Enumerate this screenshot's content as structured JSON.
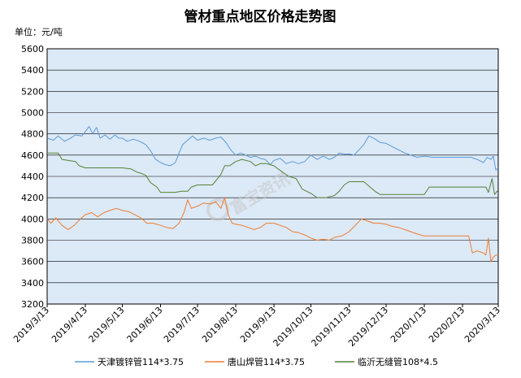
{
  "chart_data": {
    "type": "line",
    "title": "管材重点地区价格走势图",
    "unit_label": "单位：元/吨",
    "xlabel": "",
    "ylabel": "",
    "ylim": [
      3200,
      5600
    ],
    "ytick_step": 200,
    "grid": true,
    "legend_position": "bottom",
    "plot_background": "#dce9f7",
    "x_tick_labels": [
      "2019/3/13",
      "2019/4/13",
      "2019/5/13",
      "2019/6/13",
      "2019/7/13",
      "2019/8/13",
      "2019/9/13",
      "2019/10/13",
      "2019/11/13",
      "2019/12/13",
      "2020/1/13",
      "2020/2/13",
      "2020/3/13"
    ],
    "series": [
      {
        "name": "天津镀锌管114*3.75",
        "color": "#5b9bd5",
        "points": [
          [
            "2019/3/13",
            4760
          ],
          [
            "2019/3/18",
            4740
          ],
          [
            "2019/3/22",
            4780
          ],
          [
            "2019/3/27",
            4730
          ],
          [
            "2019/4/1",
            4760
          ],
          [
            "2019/4/5",
            4790
          ],
          [
            "2019/4/10",
            4780
          ],
          [
            "2019/4/13",
            4820
          ],
          [
            "2019/4/16",
            4870
          ],
          [
            "2019/4/19",
            4800
          ],
          [
            "2019/4/22",
            4860
          ],
          [
            "2019/4/25",
            4760
          ],
          [
            "2019/4/29",
            4790
          ],
          [
            "2019/5/3",
            4750
          ],
          [
            "2019/5/7",
            4790
          ],
          [
            "2019/5/10",
            4760
          ],
          [
            "2019/5/13",
            4760
          ],
          [
            "2019/5/17",
            4730
          ],
          [
            "2019/5/22",
            4750
          ],
          [
            "2019/5/27",
            4730
          ],
          [
            "2019/6/1",
            4700
          ],
          [
            "2019/6/5",
            4640
          ],
          [
            "2019/6/9",
            4560
          ],
          [
            "2019/6/13",
            4530
          ],
          [
            "2019/6/17",
            4510
          ],
          [
            "2019/6/21",
            4500
          ],
          [
            "2019/6/25",
            4530
          ],
          [
            "2019/6/28",
            4620
          ],
          [
            "2019/7/1",
            4700
          ],
          [
            "2019/7/5",
            4740
          ],
          [
            "2019/7/9",
            4780
          ],
          [
            "2019/7/13",
            4740
          ],
          [
            "2019/7/18",
            4760
          ],
          [
            "2019/7/23",
            4740
          ],
          [
            "2019/7/28",
            4760
          ],
          [
            "2019/8/1",
            4770
          ],
          [
            "2019/8/5",
            4720
          ],
          [
            "2019/8/9",
            4650
          ],
          [
            "2019/8/13",
            4600
          ],
          [
            "2019/8/17",
            4620
          ],
          [
            "2019/8/21",
            4600
          ],
          [
            "2019/8/25",
            4580
          ],
          [
            "2019/8/29",
            4590
          ],
          [
            "2019/9/2",
            4570
          ],
          [
            "2019/9/6",
            4560
          ],
          [
            "2019/9/10",
            4510
          ],
          [
            "2019/9/13",
            4550
          ],
          [
            "2019/9/18",
            4570
          ],
          [
            "2019/9/23",
            4520
          ],
          [
            "2019/9/28",
            4540
          ],
          [
            "2019/10/3",
            4520
          ],
          [
            "2019/10/8",
            4540
          ],
          [
            "2019/10/13",
            4600
          ],
          [
            "2019/10/18",
            4560
          ],
          [
            "2019/10/23",
            4590
          ],
          [
            "2019/10/28",
            4560
          ],
          [
            "2019/11/1",
            4580
          ],
          [
            "2019/11/5",
            4620
          ],
          [
            "2019/11/9",
            4610
          ],
          [
            "2019/11/13",
            4610
          ],
          [
            "2019/11/17",
            4600
          ],
          [
            "2019/11/21",
            4650
          ],
          [
            "2019/11/25",
            4700
          ],
          [
            "2019/11/29",
            4780
          ],
          [
            "2019/12/3",
            4760
          ],
          [
            "2019/12/8",
            4720
          ],
          [
            "2019/12/13",
            4710
          ],
          [
            "2019/12/18",
            4680
          ],
          [
            "2019/12/23",
            4650
          ],
          [
            "2019/12/28",
            4620
          ],
          [
            "2020/1/2",
            4600
          ],
          [
            "2020/1/7",
            4580
          ],
          [
            "2020/1/13",
            4590
          ],
          [
            "2020/1/20",
            4580
          ],
          [
            "2020/1/27",
            4580
          ],
          [
            "2020/2/3",
            4580
          ],
          [
            "2020/2/10",
            4580
          ],
          [
            "2020/2/13",
            4580
          ],
          [
            "2020/2/20",
            4580
          ],
          [
            "2020/2/25",
            4560
          ],
          [
            "2020/3/1",
            4530
          ],
          [
            "2020/3/4",
            4580
          ],
          [
            "2020/3/7",
            4560
          ],
          [
            "2020/3/9",
            4590
          ],
          [
            "2020/3/11",
            4460
          ],
          [
            "2020/3/13",
            4480
          ]
        ]
      },
      {
        "name": "唐山焊管114*3.75",
        "color": "#ed7d31",
        "points": [
          [
            "2019/3/13",
            4000
          ],
          [
            "2019/3/16",
            3960
          ],
          [
            "2019/3/20",
            4010
          ],
          [
            "2019/3/25",
            3940
          ],
          [
            "2019/3/30",
            3900
          ],
          [
            "2019/4/4",
            3940
          ],
          [
            "2019/4/9",
            4000
          ],
          [
            "2019/4/13",
            4040
          ],
          [
            "2019/4/18",
            4060
          ],
          [
            "2019/4/23",
            4020
          ],
          [
            "2019/4/28",
            4060
          ],
          [
            "2019/5/3",
            4080
          ],
          [
            "2019/5/8",
            4100
          ],
          [
            "2019/5/13",
            4080
          ],
          [
            "2019/5/18",
            4070
          ],
          [
            "2019/5/23",
            4040
          ],
          [
            "2019/5/28",
            4010
          ],
          [
            "2019/6/2",
            3960
          ],
          [
            "2019/6/7",
            3960
          ],
          [
            "2019/6/13",
            3940
          ],
          [
            "2019/6/18",
            3920
          ],
          [
            "2019/6/23",
            3910
          ],
          [
            "2019/6/28",
            3960
          ],
          [
            "2019/7/2",
            4060
          ],
          [
            "2019/7/5",
            4180
          ],
          [
            "2019/7/8",
            4100
          ],
          [
            "2019/7/13",
            4120
          ],
          [
            "2019/7/18",
            4150
          ],
          [
            "2019/7/23",
            4140
          ],
          [
            "2019/7/28",
            4160
          ],
          [
            "2019/8/1",
            4100
          ],
          [
            "2019/8/4",
            4200
          ],
          [
            "2019/8/7",
            4040
          ],
          [
            "2019/8/10",
            3960
          ],
          [
            "2019/8/13",
            3950
          ],
          [
            "2019/8/18",
            3940
          ],
          [
            "2019/8/23",
            3920
          ],
          [
            "2019/8/28",
            3900
          ],
          [
            "2019/9/2",
            3920
          ],
          [
            "2019/9/7",
            3960
          ],
          [
            "2019/9/13",
            3960
          ],
          [
            "2019/9/18",
            3940
          ],
          [
            "2019/9/23",
            3920
          ],
          [
            "2019/9/28",
            3880
          ],
          [
            "2019/10/3",
            3870
          ],
          [
            "2019/10/8",
            3850
          ],
          [
            "2019/10/13",
            3820
          ],
          [
            "2019/10/18",
            3800
          ],
          [
            "2019/10/23",
            3810
          ],
          [
            "2019/10/28",
            3800
          ],
          [
            "2019/11/2",
            3830
          ],
          [
            "2019/11/7",
            3840
          ],
          [
            "2019/11/13",
            3880
          ],
          [
            "2019/11/18",
            3940
          ],
          [
            "2019/11/23",
            4000
          ],
          [
            "2019/11/28",
            3980
          ],
          [
            "2019/12/3",
            3960
          ],
          [
            "2019/12/8",
            3960
          ],
          [
            "2019/12/13",
            3950
          ],
          [
            "2019/12/18",
            3930
          ],
          [
            "2019/12/23",
            3920
          ],
          [
            "2019/12/28",
            3900
          ],
          [
            "2020/1/2",
            3880
          ],
          [
            "2020/1/7",
            3860
          ],
          [
            "2020/1/13",
            3840
          ],
          [
            "2020/1/20",
            3840
          ],
          [
            "2020/1/27",
            3840
          ],
          [
            "2020/2/3",
            3840
          ],
          [
            "2020/2/10",
            3840
          ],
          [
            "2020/2/13",
            3840
          ],
          [
            "2020/2/18",
            3840
          ],
          [
            "2020/2/21",
            3680
          ],
          [
            "2020/2/25",
            3700
          ],
          [
            "2020/3/1",
            3680
          ],
          [
            "2020/3/3",
            3660
          ],
          [
            "2020/3/5",
            3820
          ],
          [
            "2020/3/7",
            3600
          ],
          [
            "2020/3/9",
            3640
          ],
          [
            "2020/3/11",
            3660
          ],
          [
            "2020/3/13",
            3660
          ]
        ]
      },
      {
        "name": "临沂无缝管108*4.5",
        "color": "#548235",
        "points": [
          [
            "2019/3/13",
            4620
          ],
          [
            "2019/3/22",
            4620
          ],
          [
            "2019/3/25",
            4560
          ],
          [
            "2019/4/5",
            4540
          ],
          [
            "2019/4/8",
            4500
          ],
          [
            "2019/4/13",
            4480
          ],
          [
            "2019/5/1",
            4480
          ],
          [
            "2019/5/13",
            4480
          ],
          [
            "2019/5/20",
            4470
          ],
          [
            "2019/5/25",
            4440
          ],
          [
            "2019/5/28",
            4430
          ],
          [
            "2019/6/1",
            4410
          ],
          [
            "2019/6/5",
            4340
          ],
          [
            "2019/6/10",
            4300
          ],
          [
            "2019/6/13",
            4250
          ],
          [
            "2019/6/25",
            4250
          ],
          [
            "2019/6/30",
            4260
          ],
          [
            "2019/7/5",
            4260
          ],
          [
            "2019/7/8",
            4300
          ],
          [
            "2019/7/13",
            4320
          ],
          [
            "2019/7/25",
            4320
          ],
          [
            "2019/7/28",
            4360
          ],
          [
            "2019/8/1",
            4420
          ],
          [
            "2019/8/4",
            4500
          ],
          [
            "2019/8/8",
            4500
          ],
          [
            "2019/8/13",
            4540
          ],
          [
            "2019/8/18",
            4560
          ],
          [
            "2019/8/25",
            4540
          ],
          [
            "2019/8/29",
            4500
          ],
          [
            "2019/9/2",
            4520
          ],
          [
            "2019/9/7",
            4520
          ],
          [
            "2019/9/13",
            4500
          ],
          [
            "2019/9/20",
            4440
          ],
          [
            "2019/9/25",
            4400
          ],
          [
            "2019/10/1",
            4380
          ],
          [
            "2019/10/6",
            4280
          ],
          [
            "2019/10/13",
            4240
          ],
          [
            "2019/10/18",
            4200
          ],
          [
            "2019/10/25",
            4200
          ],
          [
            "2019/11/1",
            4220
          ],
          [
            "2019/11/5",
            4260
          ],
          [
            "2019/11/9",
            4320
          ],
          [
            "2019/11/13",
            4350
          ],
          [
            "2019/11/25",
            4350
          ],
          [
            "2019/11/30",
            4300
          ],
          [
            "2019/12/4",
            4260
          ],
          [
            "2019/12/8",
            4230
          ],
          [
            "2019/12/13",
            4230
          ],
          [
            "2020/1/1",
            4230
          ],
          [
            "2020/1/13",
            4230
          ],
          [
            "2020/1/17",
            4300
          ],
          [
            "2020/1/25",
            4300
          ],
          [
            "2020/2/5",
            4300
          ],
          [
            "2020/2/13",
            4300
          ],
          [
            "2020/2/25",
            4300
          ],
          [
            "2020/3/3",
            4300
          ],
          [
            "2020/3/5",
            4250
          ],
          [
            "2020/3/8",
            4380
          ],
          [
            "2020/3/10",
            4230
          ],
          [
            "2020/3/12",
            4260
          ],
          [
            "2020/3/13",
            4250
          ]
        ]
      }
    ]
  },
  "watermark": {
    "text": "富宝资讯"
  }
}
